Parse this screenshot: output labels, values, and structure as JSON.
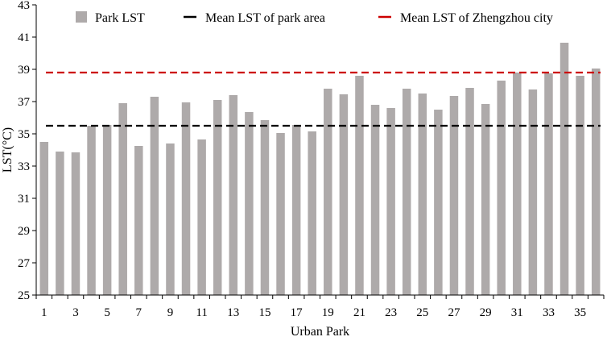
{
  "chart_data": {
    "type": "bar",
    "title": "",
    "xlabel": "Urban Park",
    "ylabel": "LST(°C)",
    "ylim": [
      25,
      43
    ],
    "yticks": [
      25,
      27,
      29,
      31,
      33,
      35,
      37,
      39,
      41,
      43
    ],
    "xtick_labels": [
      "1",
      "3",
      "5",
      "7",
      "9",
      "11",
      "13",
      "15",
      "17",
      "19",
      "21",
      "23",
      "25",
      "27",
      "29",
      "31",
      "33",
      "35"
    ],
    "categories": [
      1,
      2,
      3,
      4,
      5,
      6,
      7,
      8,
      9,
      10,
      11,
      12,
      13,
      14,
      15,
      16,
      17,
      18,
      19,
      20,
      21,
      22,
      23,
      24,
      25,
      26,
      27,
      28,
      29,
      30,
      31,
      32,
      33,
      34,
      35,
      36
    ],
    "series": [
      {
        "name": "Park LST",
        "color": "#aeaaaa",
        "values": [
          34.5,
          33.9,
          33.85,
          35.5,
          35.55,
          36.9,
          34.25,
          37.3,
          34.4,
          36.95,
          34.65,
          37.1,
          37.4,
          36.35,
          35.85,
          35.05,
          35.55,
          35.15,
          37.8,
          37.45,
          38.6,
          36.8,
          36.6,
          37.8,
          37.5,
          36.5,
          37.35,
          37.85,
          36.85,
          38.3,
          38.8,
          37.75,
          38.75,
          40.65,
          38.6,
          39.05
        ]
      }
    ],
    "reference_lines": [
      {
        "name": "Mean LST of park area",
        "value": 35.5,
        "color": "#000000",
        "style": "dashed"
      },
      {
        "name": "Mean LST of Zhengzhou city",
        "value": 38.8,
        "color": "#cc0000",
        "style": "dashed"
      }
    ],
    "legend_position": "top",
    "grid": false
  }
}
